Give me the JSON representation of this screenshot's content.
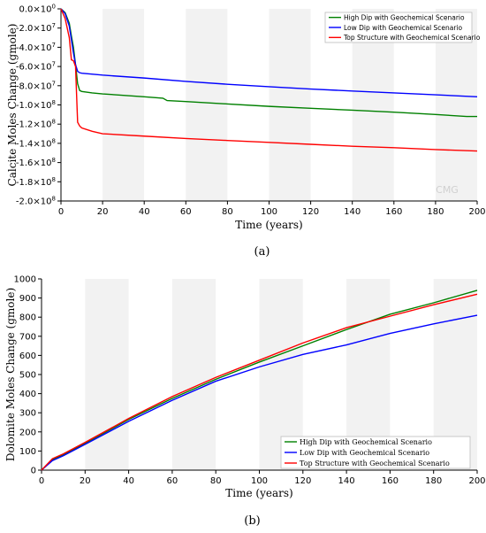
{
  "chart_data": [
    {
      "type": "line",
      "panel_label": "(a)",
      "xlabel": "Time (years)",
      "ylabel": "Calcite Moles Change  (gmole)",
      "xlim": [
        0,
        200
      ],
      "ylim": [
        -200000000,
        0
      ],
      "x_ticks": [
        0,
        20,
        40,
        60,
        80,
        100,
        120,
        140,
        160,
        180,
        200
      ],
      "y_ticks": [
        {
          "value": 0,
          "mant": "0.0",
          "exp": "0"
        },
        {
          "value": -20000000,
          "mant": "-2.0",
          "exp": "7"
        },
        {
          "value": -40000000,
          "mant": "-4.0",
          "exp": "7"
        },
        {
          "value": -60000000,
          "mant": "-6.0",
          "exp": "7"
        },
        {
          "value": -80000000,
          "mant": "-8.0",
          "exp": "7"
        },
        {
          "value": -100000000,
          "mant": "-1.0",
          "exp": "8"
        },
        {
          "value": -120000000,
          "mant": "-1.2",
          "exp": "8"
        },
        {
          "value": -140000000,
          "mant": "-1.4",
          "exp": "8"
        },
        {
          "value": -160000000,
          "mant": "-1.6",
          "exp": "8"
        },
        {
          "value": -180000000,
          "mant": "-1.8",
          "exp": "8"
        },
        {
          "value": -200000000,
          "mant": "-2.0",
          "exp": "8"
        }
      ],
      "background_bands": "alternating",
      "legend_position": "top-right",
      "watermark": "CMG",
      "series": [
        {
          "name": "High Dip with Geochemical Scenario",
          "color": "#008000",
          "x": [
            0,
            2,
            4,
            5,
            6,
            7,
            8,
            9,
            10,
            15,
            20,
            30,
            40,
            49,
            51,
            60,
            80,
            100,
            120,
            140,
            160,
            180,
            195,
            200
          ],
          "y": [
            0,
            -4000000,
            -15000000,
            -28000000,
            -40000000,
            -58000000,
            -78000000,
            -85000000,
            -86000000,
            -87500000,
            -88500000,
            -90000000,
            -91500000,
            -93000000,
            -95500000,
            -96500000,
            -99000000,
            -101500000,
            -103500000,
            -105500000,
            -107500000,
            -110000000,
            -112000000,
            -112000000
          ]
        },
        {
          "name": "Low Dip with Geochemical Scenario",
          "color": "#0000ff",
          "x": [
            0,
            2,
            4,
            5,
            6,
            7,
            8,
            9,
            10,
            20,
            40,
            60,
            80,
            100,
            120,
            140,
            160,
            180,
            200
          ],
          "y": [
            0,
            -5000000,
            -18000000,
            -32000000,
            -46000000,
            -58000000,
            -65000000,
            -66500000,
            -67000000,
            -69000000,
            -72000000,
            -75500000,
            -78500000,
            -81000000,
            -83500000,
            -85500000,
            -87500000,
            -89500000,
            -91500000
          ]
        },
        {
          "name": "Top Structure with Geochemical Scenario",
          "color": "#ff0000",
          "x": [
            0,
            2,
            4,
            5,
            6,
            7,
            8,
            9,
            10,
            15,
            20,
            40,
            60,
            80,
            100,
            120,
            140,
            160,
            180,
            200
          ],
          "y": [
            0,
            -10000000,
            -30000000,
            -53000000,
            -54000000,
            -60000000,
            -118000000,
            -122000000,
            -124000000,
            -127500000,
            -130000000,
            -132500000,
            -135000000,
            -137000000,
            -139000000,
            -141000000,
            -143000000,
            -144500000,
            -146500000,
            -148000000
          ]
        }
      ]
    },
    {
      "type": "line",
      "panel_label": "(b)",
      "xlabel": "Time (years)",
      "ylabel": "Dolomite Moles Change  (gmole)",
      "xlim": [
        0,
        200
      ],
      "ylim": [
        0,
        1000
      ],
      "x_ticks": [
        0,
        20,
        40,
        60,
        80,
        100,
        120,
        140,
        160,
        180,
        200
      ],
      "y_ticks": [
        0,
        100,
        200,
        300,
        400,
        500,
        600,
        700,
        800,
        900,
        1000
      ],
      "background_bands": "alternating",
      "legend_position": "bottom-right",
      "watermark": "CMG",
      "series": [
        {
          "name": "High Dip with Geochemical Scenario",
          "color": "#008000",
          "x": [
            0,
            5,
            10,
            20,
            40,
            60,
            80,
            100,
            120,
            140,
            160,
            180,
            200
          ],
          "y": [
            0,
            55,
            80,
            140,
            265,
            375,
            475,
            565,
            650,
            735,
            815,
            875,
            940
          ]
        },
        {
          "name": "Low Dip with Geochemical Scenario",
          "color": "#0000ff",
          "x": [
            0,
            5,
            10,
            20,
            40,
            60,
            80,
            100,
            120,
            140,
            160,
            180,
            200
          ],
          "y": [
            0,
            50,
            75,
            135,
            255,
            365,
            465,
            540,
            605,
            655,
            715,
            765,
            810
          ]
        },
        {
          "name": "Top Structure with Geochemical Scenario",
          "color": "#ff0000",
          "x": [
            0,
            5,
            10,
            20,
            40,
            60,
            80,
            100,
            120,
            140,
            160,
            180,
            200
          ],
          "y": [
            0,
            60,
            85,
            145,
            270,
            385,
            485,
            575,
            665,
            745,
            805,
            865,
            920
          ]
        }
      ]
    }
  ]
}
